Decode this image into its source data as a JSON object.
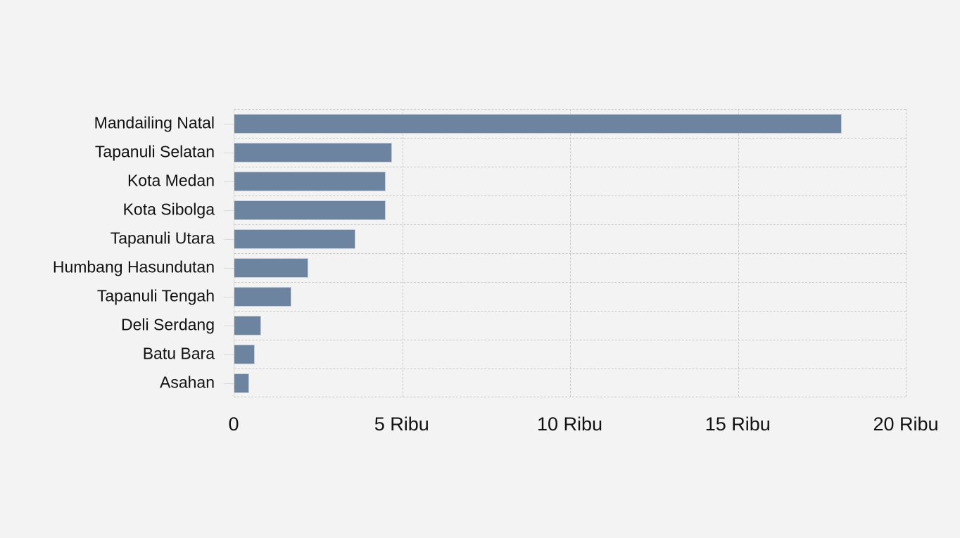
{
  "chart_data": {
    "type": "bar",
    "orientation": "horizontal",
    "title": "",
    "xlabel": "",
    "ylabel": "",
    "unit": "Ribu",
    "categories": [
      "Mandailing Natal",
      "Tapanuli Selatan",
      "Kota Medan",
      "Kota Sibolga",
      "Tapanuli Utara",
      "Humbang Hasundutan",
      "Tapanuli Tengah",
      "Deli Serdang",
      "Batu Bara",
      "Asahan"
    ],
    "values": [
      18.1,
      4.7,
      4.5,
      4.5,
      3.6,
      2.2,
      1.7,
      0.8,
      0.6,
      0.45
    ],
    "xlim": [
      0,
      20
    ],
    "x_ticks": [
      "0",
      "5 Ribu",
      "10 Ribu",
      "15 Ribu",
      "20 Ribu"
    ],
    "x_tick_positions_pct": [
      0,
      25,
      50,
      75,
      100
    ],
    "grid": "dashed",
    "legend": "none",
    "colors": {
      "bar_fill": "#6d84a1",
      "bar_border": "#c9cfda",
      "background": "#f4f3f4",
      "gridline": "#c9c9c9",
      "axis_line": "#d9d9d9",
      "text": "#111111"
    }
  }
}
